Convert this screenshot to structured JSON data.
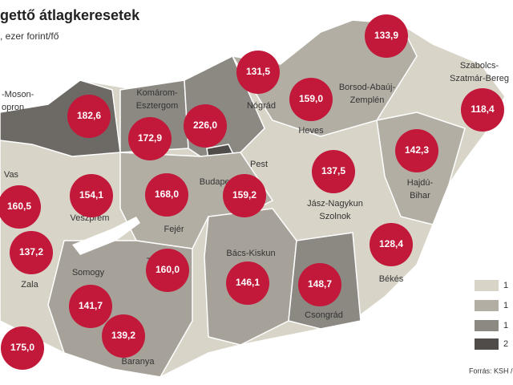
{
  "header": {
    "title": "gettő átlagkeresetek",
    "subtitle": ", ezer forint/fő"
  },
  "county_labels": [
    [
      "-Moson-",
      "opron"
    ],
    [
      "Komárom-",
      "Esztergom"
    ],
    [
      "Nógrád"
    ],
    [
      "Borsod-Abaúj-",
      "Zemplén"
    ],
    [
      "Szabolcs-",
      "Szatmár-Bereg"
    ],
    [
      "Heves"
    ],
    [
      "Pest"
    ],
    [
      "Budapest"
    ],
    [
      "Vas"
    ],
    [
      "Veszprém"
    ],
    [
      "Fejér"
    ],
    [
      "Hajdú-",
      "Bihar"
    ],
    [
      "Jász-Nagykun",
      "Szolnok"
    ],
    [
      "Zala"
    ],
    [
      "Somogy"
    ],
    [
      "Tolna"
    ],
    [
      "Bács-Kiskun"
    ],
    [
      "Békés"
    ],
    [
      "Csongrád"
    ],
    [
      "Baranya"
    ]
  ],
  "values": [
    "133,9",
    "131,5",
    "118,4",
    "182,6",
    "172,9",
    "226,0",
    "159,0",
    "142,3",
    "137,5",
    "154,1",
    "168,0",
    "159,2",
    "160,5",
    "137,2",
    "128,4",
    "146,1",
    "148,7",
    "141,7",
    "160,0",
    "139,2",
    "175,0"
  ],
  "legend": [
    "1",
    "1",
    "1",
    "2"
  ],
  "source": "Forrás: KSH / I"
}
